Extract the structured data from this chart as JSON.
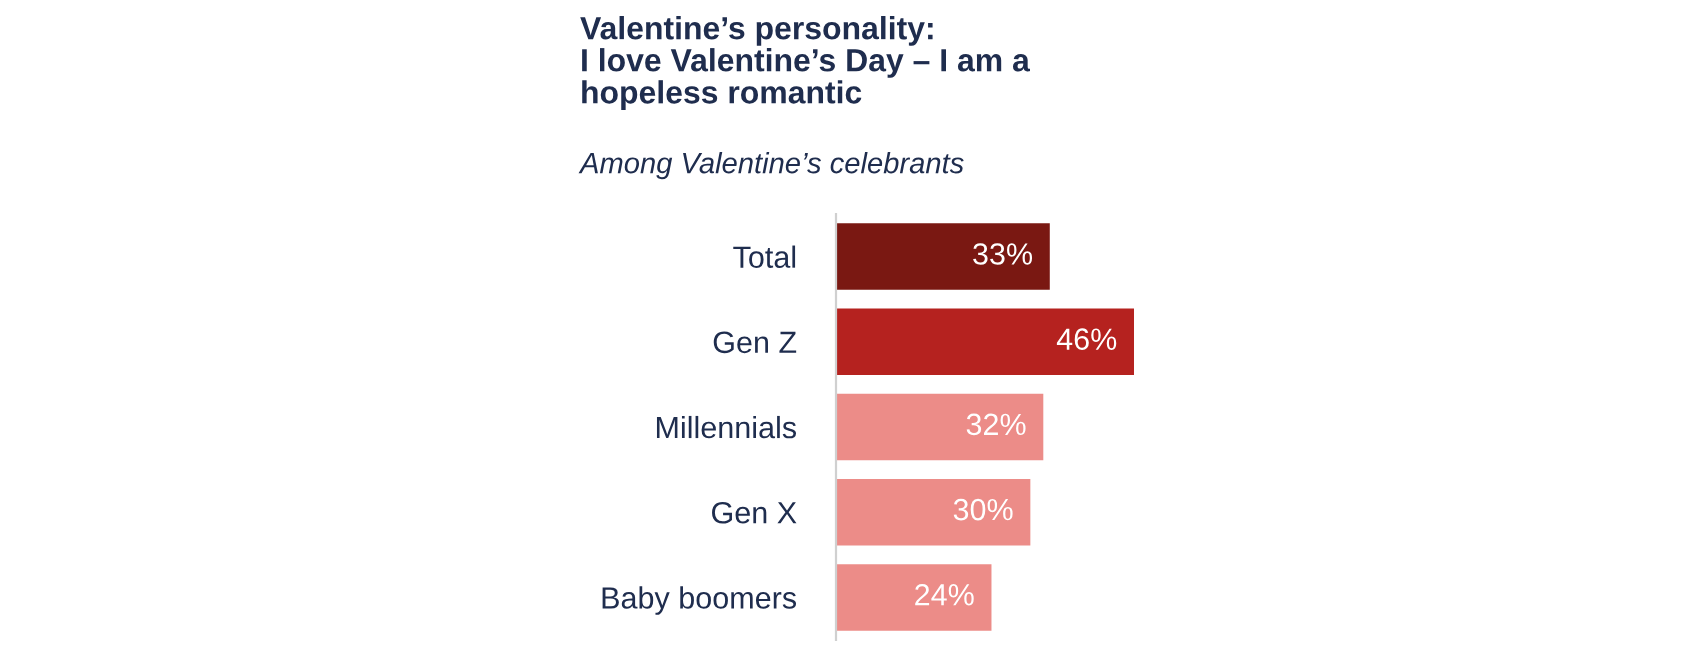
{
  "chart_data": {
    "type": "bar",
    "orientation": "horizontal",
    "title": "Valentine’s personality:\nI love Valentine’s Day – I am a\nhopeless romantic",
    "subtitle": "Among Valentine’s celebrants",
    "categories": [
      "Total",
      "Gen Z",
      "Millennials",
      "Gen X",
      "Baby boomers"
    ],
    "values": [
      33,
      46,
      32,
      30,
      24
    ],
    "colors": [
      "#7a1812",
      "#b5221f",
      "#ec8c88",
      "#ec8c88",
      "#ec8c88"
    ],
    "value_labels": [
      "33%",
      "46%",
      "32%",
      "30%",
      "24%"
    ],
    "grid": false,
    "legend": false
  }
}
